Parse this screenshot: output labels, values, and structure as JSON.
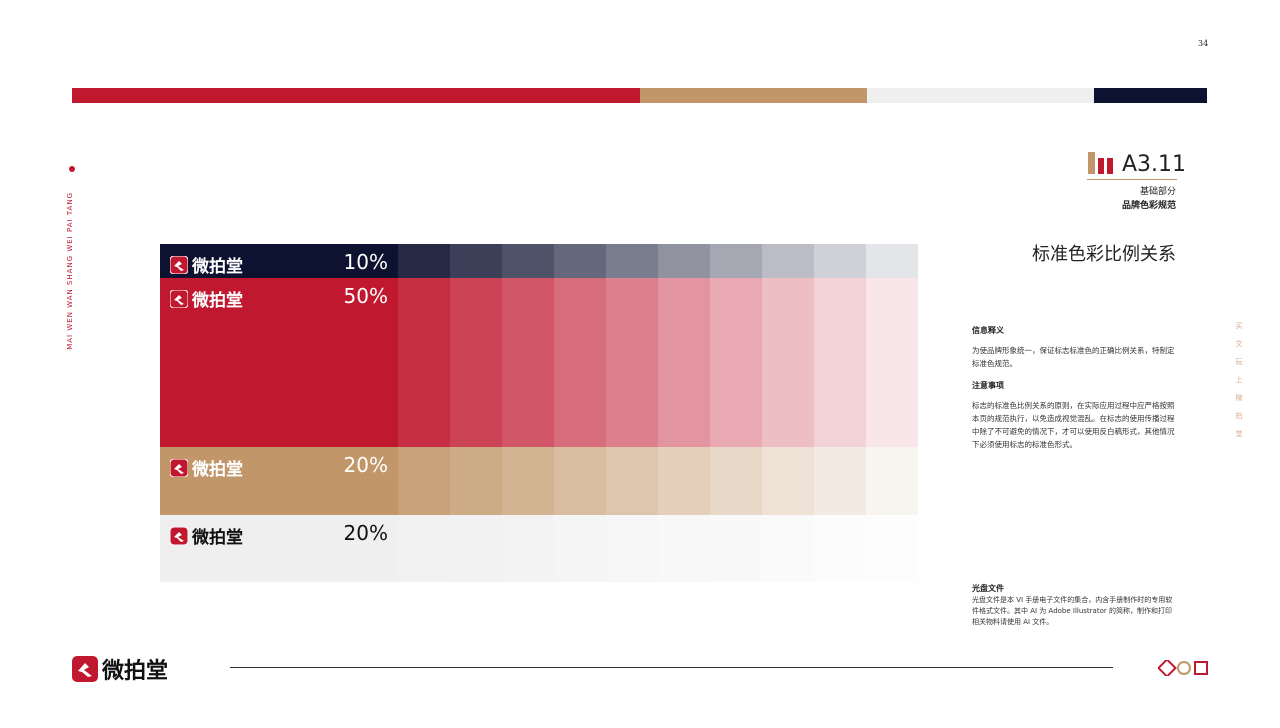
{
  "page_number": "34",
  "section": {
    "code": "A3.11",
    "part": "基础部分",
    "name": "品牌色彩规范"
  },
  "title": "标准色彩比例关系",
  "side_text_en": "MAI WEN WAN SHANG WEI PAI TANG",
  "side_text_cn": "买文玩上微拍堂",
  "color_rows": [
    {
      "brand": "微拍堂",
      "ratio": "10%",
      "color": "#0d1230",
      "text_color": "#ffffff"
    },
    {
      "brand": "微拍堂",
      "ratio": "50%",
      "color": "#c0182f",
      "text_color": "#ffffff"
    },
    {
      "brand": "微拍堂",
      "ratio": "20%",
      "color": "#c19769",
      "text_color": "#ffffff"
    },
    {
      "brand": "微拍堂",
      "ratio": "20%",
      "color": "#efefef",
      "text_color": "#111111"
    }
  ],
  "notes": [
    {
      "heading": "信息释义",
      "body": "为使品牌形象统一，保证标志标准色的正确比例关系，特制定标准色规范。"
    },
    {
      "heading": "注意事项",
      "body": "标志的标准色比例关系的原则，在实际应用过程中应严格按照本页的规范执行，以免造成视觉混乱。在标志的使用传播过程中除了不可避免的情况下，才可以使用反白稿形式，其他情况下必须使用标志的标准色形式。"
    }
  ],
  "disc": {
    "heading": "光盘文件",
    "body": "光盘文件是本 VI 手册电子文件的集合，内含手册制作时的专用软件格式文件。其中 AI 为 Adobe Illustrator 的简称，制作和打印相关物料请使用 AI 文件。"
  },
  "footer_logo": "微拍堂"
}
